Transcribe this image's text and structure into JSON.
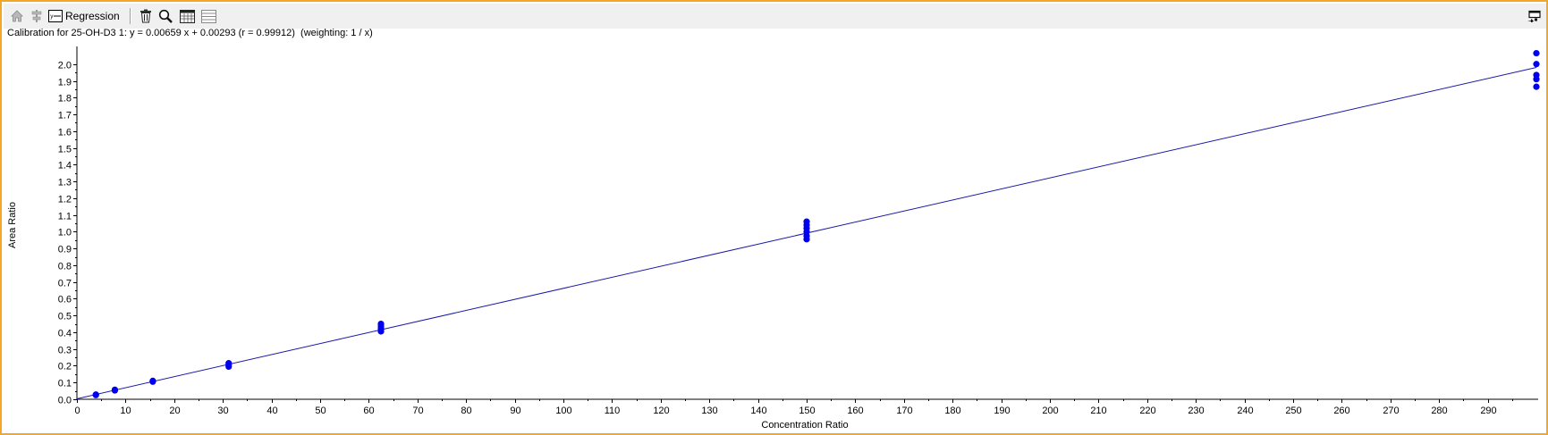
{
  "toolbar": {
    "buttons": [
      {
        "name": "home-button",
        "icon": "home-icon"
      },
      {
        "name": "align-button",
        "icon": "align-icon"
      },
      {
        "name": "regression-button",
        "icon": "regression-icon",
        "label": "Regression"
      },
      {
        "name": "delete-button",
        "icon": "trash-icon"
      },
      {
        "name": "zoom-button",
        "icon": "magnifier-icon"
      },
      {
        "name": "calendar-button",
        "icon": "calendar-icon"
      },
      {
        "name": "list-button",
        "icon": "list-icon"
      }
    ],
    "regression_label": "Regression",
    "dock_icon": "dock-icon"
  },
  "header": {
    "calibration_text": "Calibration for 25-OH-D3 1: y = 0.00659 x + 0.00293 (r = 0.99912)  (weighting: 1 / x)"
  },
  "colors": {
    "frame_border": "#f5a623",
    "series": "#0000ee",
    "fit_line": "#1a1aa8"
  },
  "chart_data": {
    "type": "scatter",
    "title": "Calibration for 25-OH-D3 1: y = 0.00659 x + 0.00293 (r = 0.99912)  (weighting: 1 / x)",
    "xlabel": "Concentration Ratio",
    "ylabel": "Area Ratio",
    "xlim": [
      0,
      300
    ],
    "ylim": [
      0,
      2.1
    ],
    "xticks": [
      0,
      10,
      20,
      30,
      40,
      50,
      60,
      70,
      80,
      90,
      100,
      110,
      120,
      130,
      140,
      150,
      160,
      170,
      180,
      190,
      200,
      210,
      220,
      230,
      240,
      250,
      260,
      270,
      280,
      290
    ],
    "yticks": [
      0.0,
      0.1,
      0.2,
      0.3,
      0.4,
      0.5,
      0.6,
      0.7,
      0.8,
      0.9,
      1.0,
      1.1,
      1.2,
      1.3,
      1.4,
      1.5,
      1.6,
      1.7,
      1.8,
      1.9,
      2.0
    ],
    "ytick_labels": [
      "0.0",
      "0.1",
      "0.2",
      "0.3",
      "0.4",
      "0.5",
      "0.6",
      "0.7",
      "0.8",
      "0.9",
      "1.0",
      "1.1",
      "1.2",
      "1.3",
      "1.4",
      "1.5",
      "1.6",
      "1.7",
      "1.8",
      "1.9",
      "2.0"
    ],
    "regression": {
      "slope": 0.00659,
      "intercept": 0.00293,
      "r": 0.99912,
      "weighting": "1 / x"
    },
    "points": [
      {
        "x": 3.9,
        "y": 0.025
      },
      {
        "x": 3.9,
        "y": 0.028
      },
      {
        "x": 7.8,
        "y": 0.053
      },
      {
        "x": 7.8,
        "y": 0.057
      },
      {
        "x": 15.6,
        "y": 0.105
      },
      {
        "x": 15.6,
        "y": 0.11
      },
      {
        "x": 31.2,
        "y": 0.195
      },
      {
        "x": 31.2,
        "y": 0.205
      },
      {
        "x": 31.2,
        "y": 0.215
      },
      {
        "x": 62.5,
        "y": 0.405
      },
      {
        "x": 62.5,
        "y": 0.42
      },
      {
        "x": 62.5,
        "y": 0.435
      },
      {
        "x": 62.5,
        "y": 0.45
      },
      {
        "x": 150,
        "y": 0.955
      },
      {
        "x": 150,
        "y": 0.975
      },
      {
        "x": 150,
        "y": 1.0
      },
      {
        "x": 150,
        "y": 1.02
      },
      {
        "x": 150,
        "y": 1.04
      },
      {
        "x": 150,
        "y": 1.06
      },
      {
        "x": 300,
        "y": 1.865
      },
      {
        "x": 300,
        "y": 1.91
      },
      {
        "x": 300,
        "y": 1.935
      },
      {
        "x": 300,
        "y": 2.0
      },
      {
        "x": 300,
        "y": 2.065
      }
    ],
    "grid": false,
    "legend": "none"
  }
}
